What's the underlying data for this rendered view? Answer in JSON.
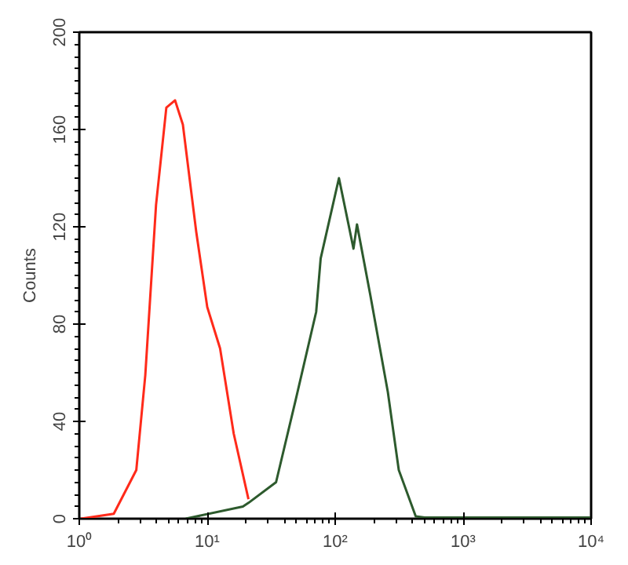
{
  "chart_data": {
    "type": "line",
    "ylabel": "Counts",
    "log": "x",
    "grid": false,
    "marker": "none",
    "line_style": "solid",
    "xlim": [
      1,
      10000
    ],
    "ylim": [
      0,
      200
    ],
    "xticks": [
      {
        "value": 1,
        "label": "10⁰"
      },
      {
        "value": 10,
        "label": "10¹"
      },
      {
        "value": 100,
        "label": "10²"
      },
      {
        "value": 1000,
        "label": "10³"
      },
      {
        "value": 10000,
        "label": "10⁴"
      }
    ],
    "yticks": [
      0,
      40,
      80,
      120,
      160,
      200
    ],
    "series": [
      {
        "color": "#ff2a1a",
        "x": [
          1.03,
          1.86,
          2.79,
          3.28,
          3.98,
          4.79,
          5.6,
          6.45,
          8.2,
          10,
          12.6,
          16.1,
          21
        ],
        "values": [
          0,
          2,
          20,
          59,
          129,
          169,
          172,
          162,
          118,
          87,
          70,
          35,
          8
        ]
      },
      {
        "color": "#2d5a2d",
        "x": [
          6.8,
          19,
          21,
          34.5,
          48.7,
          71,
          77,
          107,
          139,
          148,
          188,
          258,
          314,
          426,
          500,
          10000
        ],
        "values": [
          0,
          5,
          6.5,
          15,
          48,
          85,
          107,
          140,
          111,
          121,
          92,
          52,
          20,
          1,
          0.5,
          0.5
        ]
      }
    ]
  }
}
